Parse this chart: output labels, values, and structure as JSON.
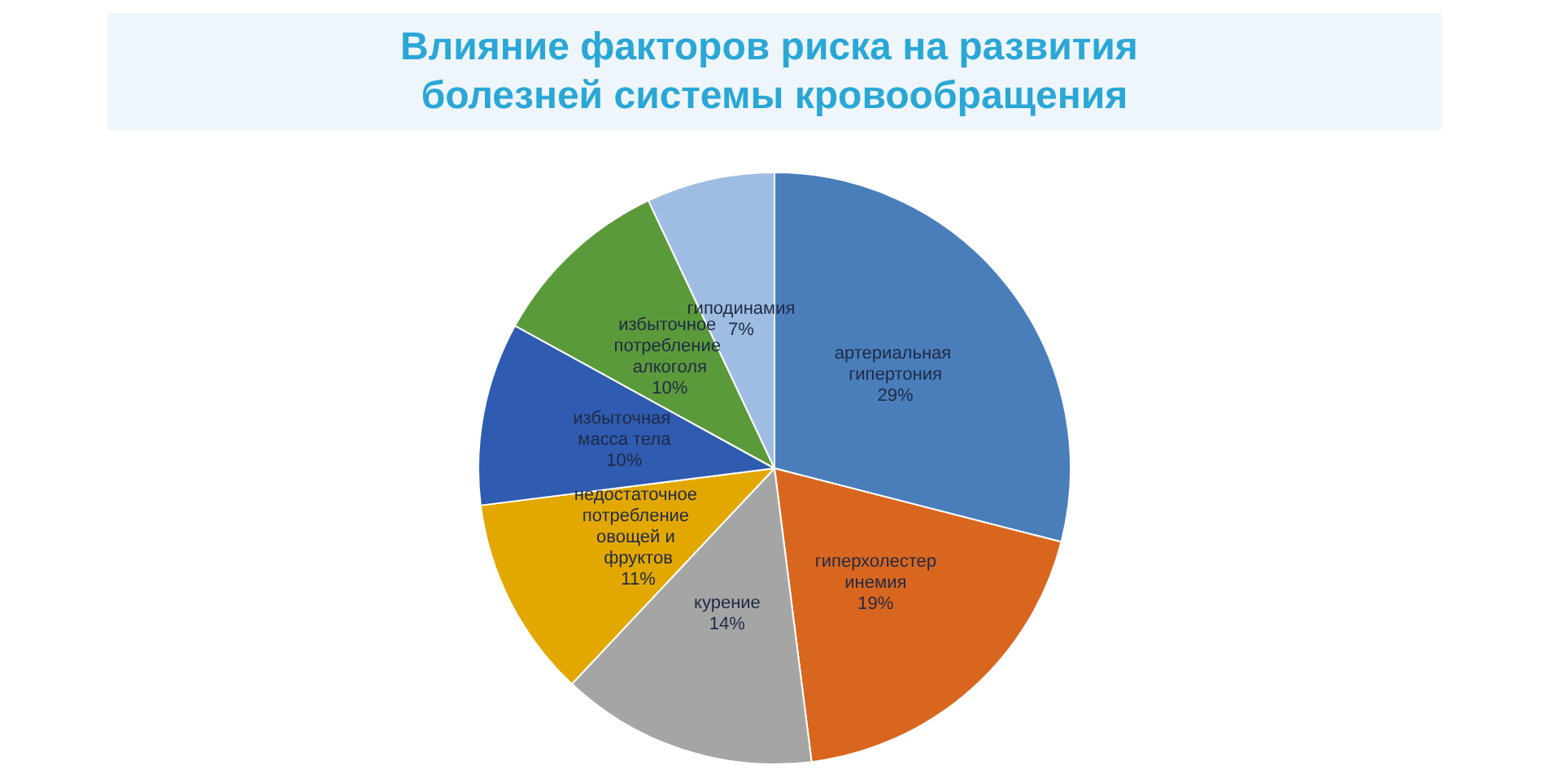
{
  "chart_data": {
    "type": "pie",
    "title": "Влияние факторов риска на развития болезней системы кровообращения",
    "categories": [
      "артериальная гипертония",
      "гиперхолестеринемия",
      "курение",
      "недостаточное потребление овощей и фруктов",
      "избыточная масса тела",
      "избыточное потребление алкоголя",
      "гиподинамия"
    ],
    "values": [
      29,
      19,
      14,
      11,
      10,
      10,
      7
    ],
    "value_labels": [
      "29%",
      "19%",
      "14%",
      "11%",
      "10%",
      "10%",
      "7%"
    ],
    "colors": [
      "#4a7ebb",
      "#d9661f",
      "#a5a5a5",
      "#e3a800",
      "#2f5bb0",
      "#5b9a3a",
      "#9fbde3"
    ],
    "legend": false
  }
}
